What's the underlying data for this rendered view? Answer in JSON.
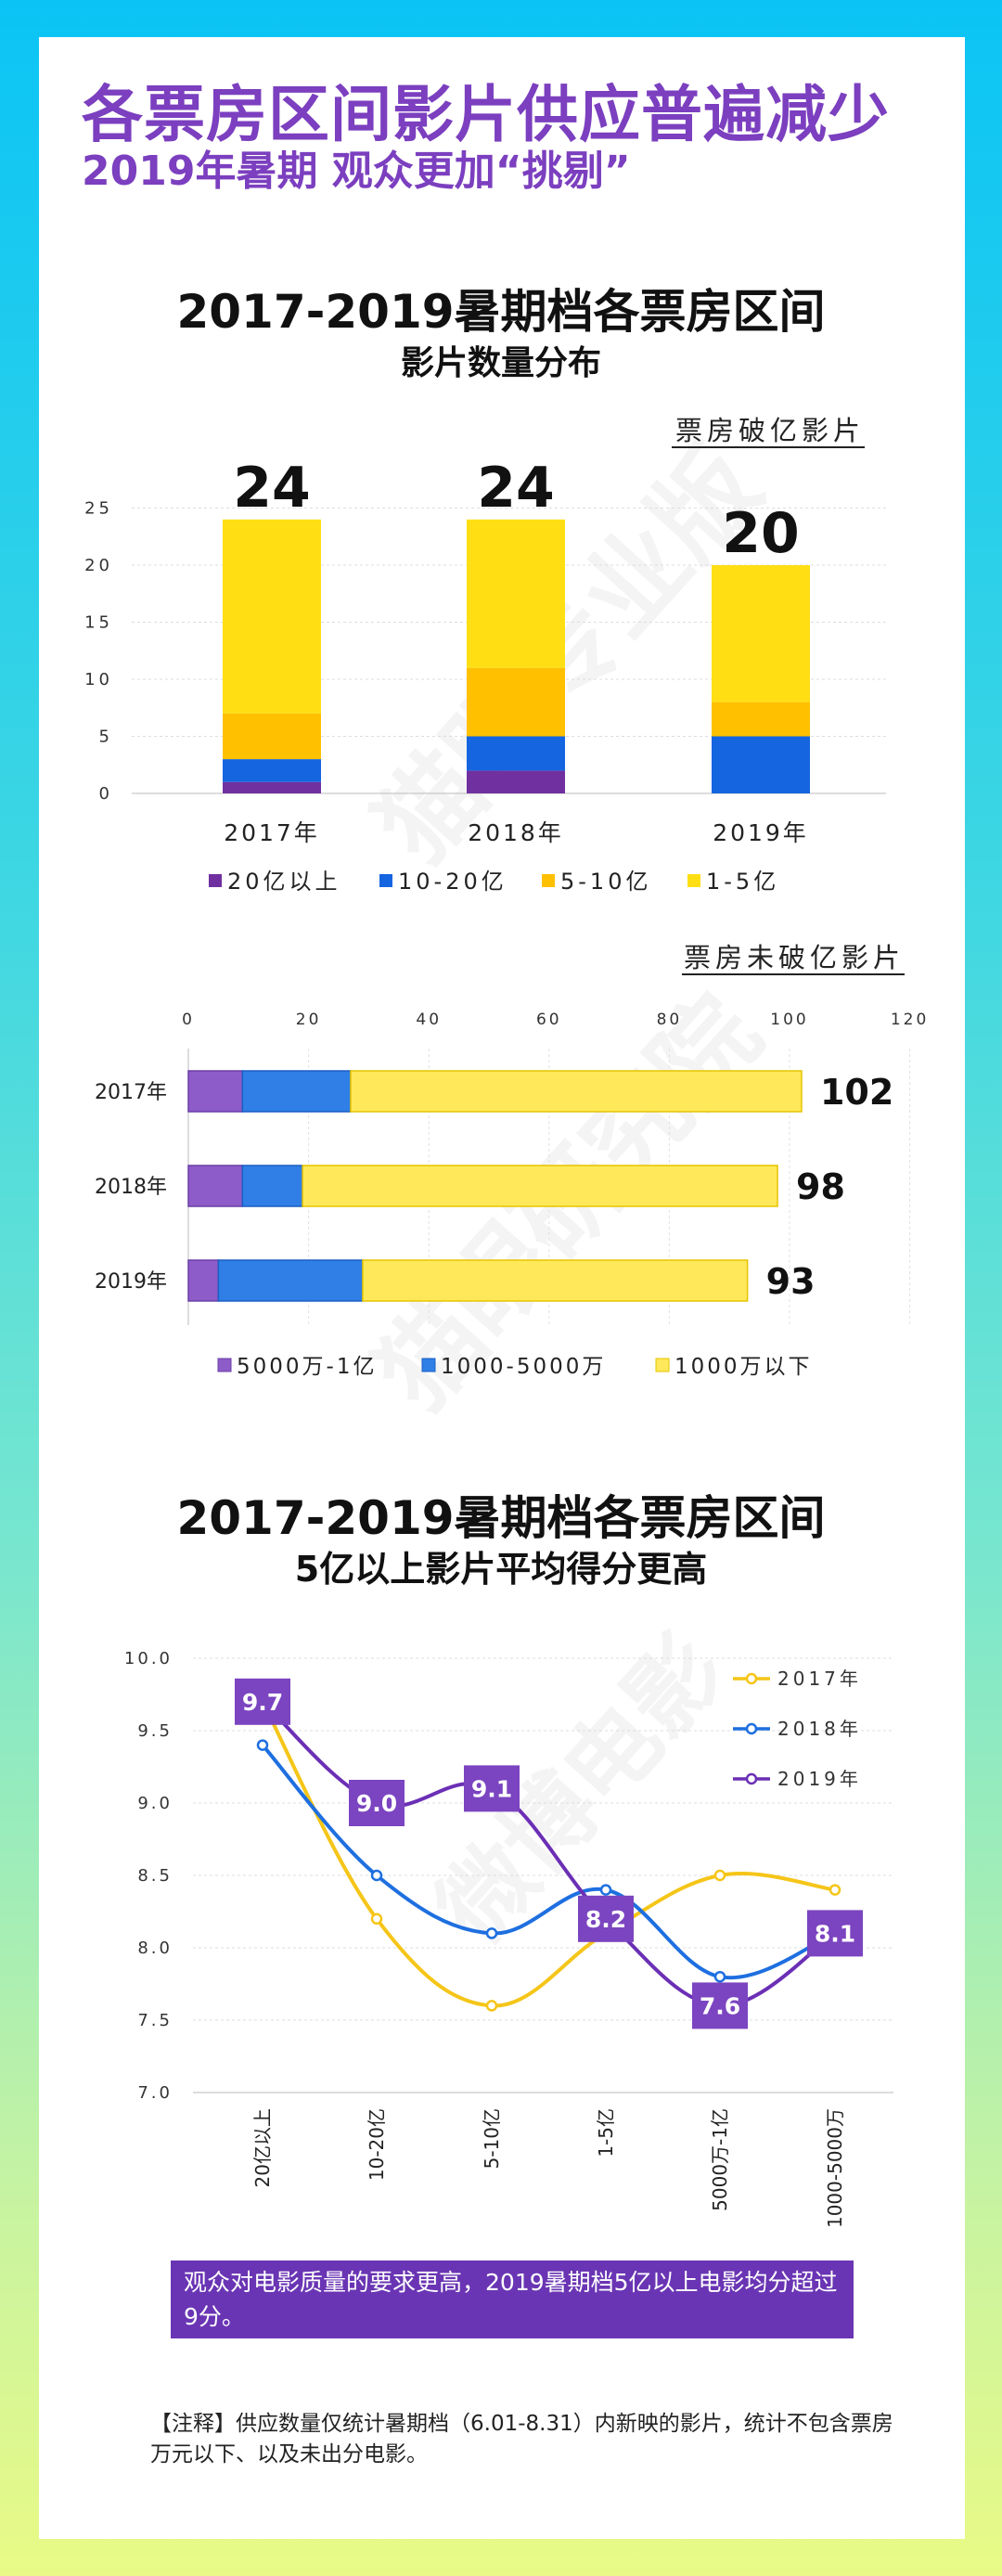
{
  "headline": {
    "line1": "各票房区间影片供应普遍减少",
    "line2": "2019年暑期 观众更加“挑剔”"
  },
  "chart1": {
    "title_line1": "2017-2019暑期档各票房区间",
    "title_line2": "影片数量分布"
  },
  "chart3": {
    "title_line1": "2017-2019暑期档各票房区间",
    "title_line2": "5亿以上影片平均得分更高"
  },
  "watermark": {
    "text1": "猫眼专业版",
    "text2": "猫眼研究院",
    "text3": "微博电影"
  },
  "note": "观众对电影质量的要求更高，2019暑期档5亿以上电影均分超过9分。",
  "footnote": "【注释】供应数量仅统计暑期档（6.01-8.31）内新映的影片，统计不包含票房万元以下、以及未出分电影。",
  "colors": {
    "purple": "#7030a0",
    "blue": "#1565e0",
    "orange": "#ffc000",
    "yellow": "#ffdf14",
    "lavender": "#8e5cc8",
    "lightblue": "#2f7fe6",
    "lightyellow": "#ffe95a",
    "line2017": "#f5c518",
    "line2018": "#1e6fe0",
    "line2019": "#6b2fb5",
    "labelbox": "#7b44c0"
  },
  "chart_data": [
    {
      "type": "bar",
      "stacked": true,
      "orientation": "vertical",
      "subtitle": "票房破亿影片",
      "categories": [
        "2017年",
        "2018年",
        "2019年"
      ],
      "series": [
        {
          "name": "20亿以上",
          "values": [
            1,
            2,
            0
          ]
        },
        {
          "name": "10-20亿",
          "values": [
            2,
            3,
            5
          ]
        },
        {
          "name": "5-10亿",
          "values": [
            4,
            6,
            3
          ]
        },
        {
          "name": "1-5亿",
          "values": [
            17,
            13,
            12
          ]
        }
      ],
      "totals": [
        "24",
        "24",
        "20"
      ],
      "ylim": [
        0,
        25
      ],
      "yticks": [
        "0",
        "5",
        "10",
        "15",
        "20",
        "25"
      ],
      "legend": "bottom"
    },
    {
      "type": "bar",
      "stacked": true,
      "orientation": "horizontal",
      "subtitle": "票房未破亿影片",
      "categories": [
        "2017年",
        "2018年",
        "2019年"
      ],
      "series": [
        {
          "name": "5000万-1亿",
          "values": [
            9,
            9,
            5
          ]
        },
        {
          "name": "1000-5000万",
          "values": [
            18,
            10,
            24
          ]
        },
        {
          "name": "1000万以下",
          "values": [
            75,
            79,
            64
          ]
        }
      ],
      "totals": [
        "102",
        "98",
        "93"
      ],
      "xlim": [
        0,
        120
      ],
      "xticks": [
        "0",
        "20",
        "40",
        "60",
        "80",
        "100",
        "120"
      ],
      "legend": "bottom"
    },
    {
      "type": "line",
      "categories": [
        "20亿以上",
        "10-20亿",
        "5-10亿",
        "1-5亿",
        "5000万-1亿",
        "1000-5000万"
      ],
      "series": [
        {
          "name": "2017年",
          "values": [
            9.7,
            8.2,
            7.6,
            8.1,
            8.5,
            8.4
          ]
        },
        {
          "name": "2018年",
          "values": [
            9.4,
            8.5,
            8.1,
            8.4,
            7.8,
            8.1
          ]
        },
        {
          "name": "2019年",
          "values": [
            9.7,
            9.0,
            9.1,
            8.2,
            7.6,
            8.1
          ]
        }
      ],
      "point_labels": [
        "9.7",
        "9.0",
        "9.1",
        "8.2",
        "7.6",
        "8.1"
      ],
      "ylim": [
        7.0,
        10.0
      ],
      "yticks": [
        "7.0",
        "7.5",
        "8.0",
        "8.5",
        "9.0",
        "9.5",
        "10.0"
      ],
      "legend": "top-right"
    }
  ]
}
